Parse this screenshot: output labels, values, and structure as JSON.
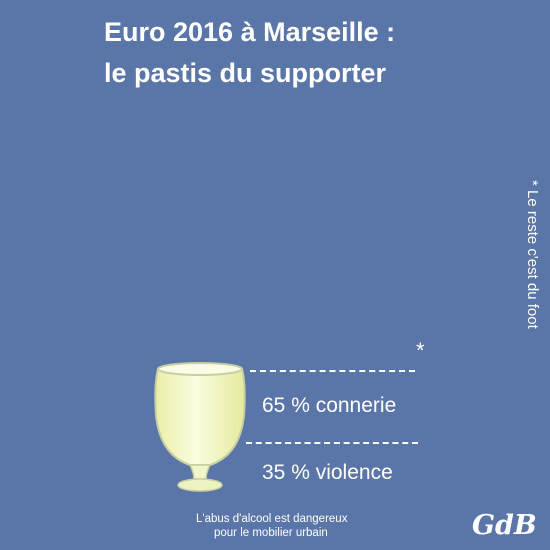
{
  "colors": {
    "background": "#5a76a8",
    "text": "#ffffff",
    "liquid": "#f1f5b5",
    "glass_outline": "#c8cfa2"
  },
  "title": {
    "line1": "Euro 2016 à Marseille :",
    "line2": "le pastis du supporter"
  },
  "side_note": "* Le reste c'est du foot",
  "glass": {
    "icon": "pastis-glass-icon",
    "top_mark": "*"
  },
  "composition": [
    {
      "percent": 65,
      "label": "65 % connerie"
    },
    {
      "percent": 35,
      "label": "35 % violence"
    }
  ],
  "warning": {
    "line1": "L'abus d'alcool est dangereux",
    "line2": "pour le mobilier urbain"
  },
  "signature": "GdB"
}
